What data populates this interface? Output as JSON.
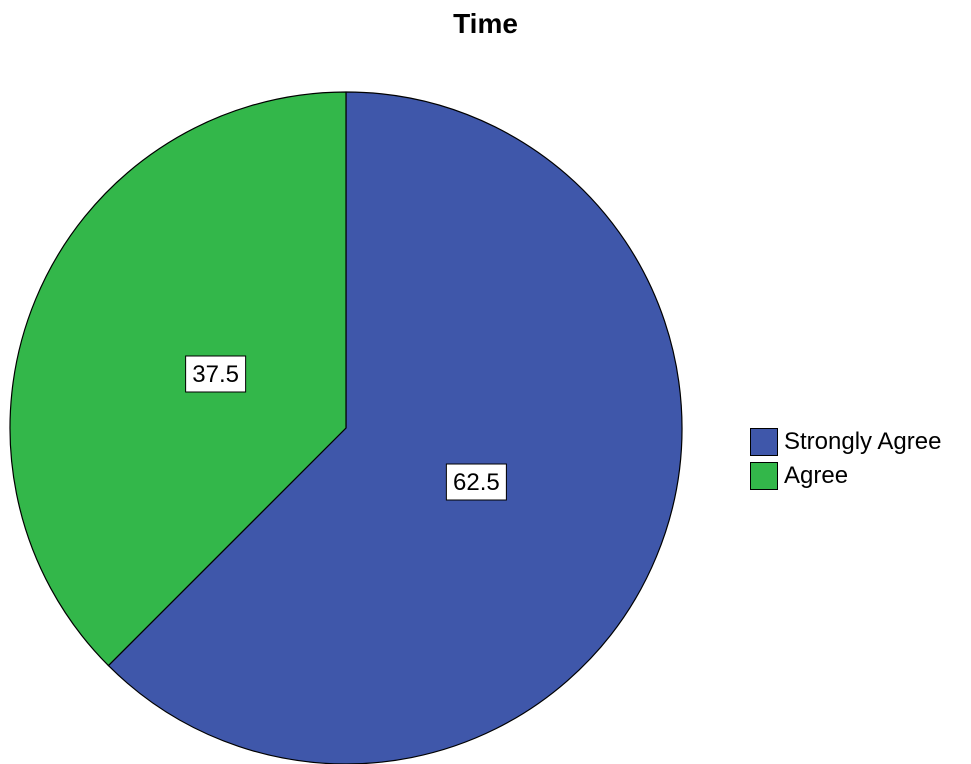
{
  "chart_data": {
    "type": "pie",
    "title": "Time",
    "categories": [
      "Strongly Agree",
      "Agree"
    ],
    "values": [
      62.5,
      37.5
    ],
    "data_labels": [
      "62.5",
      "37.5"
    ],
    "colors": [
      "#3f57aa",
      "#33b74a"
    ],
    "legend_position": "right",
    "start_angle": "12 o'clock",
    "direction": "clockwise"
  }
}
